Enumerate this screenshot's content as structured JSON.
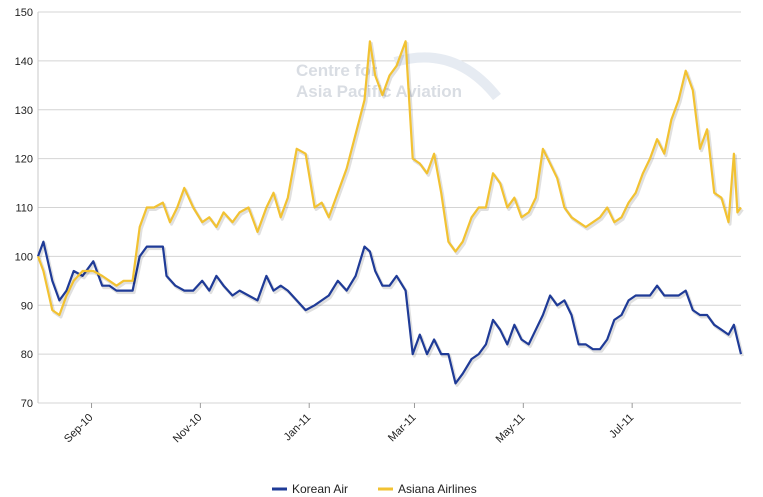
{
  "watermark": {
    "line1": "Centre for",
    "line2": "Asia Pacific Aviation"
  },
  "chart_data": {
    "type": "line",
    "title": "",
    "xlabel": "",
    "ylabel": "",
    "ylim": [
      70,
      150
    ],
    "yticks": [
      70,
      80,
      90,
      100,
      110,
      120,
      130,
      140,
      150
    ],
    "x_range": [
      "2010-08-02",
      "2011-08-31"
    ],
    "x_ticks": [
      {
        "date": "2010-09-01",
        "label": "Sep-10"
      },
      {
        "date": "2010-11-01",
        "label": "Nov-10"
      },
      {
        "date": "2011-01-01",
        "label": "Jan-11"
      },
      {
        "date": "2011-03-01",
        "label": "Mar-11"
      },
      {
        "date": "2011-05-01",
        "label": "May-11"
      },
      {
        "date": "2011-07-01",
        "label": "Jul-11"
      }
    ],
    "grid": true,
    "legend_position": "bottom-center",
    "series": [
      {
        "name": "Korean Air",
        "color": "#1f3b97",
        "points": [
          [
            "2010-08-02",
            100
          ],
          [
            "2010-08-05",
            103
          ],
          [
            "2010-08-10",
            95
          ],
          [
            "2010-08-14",
            91
          ],
          [
            "2010-08-18",
            93
          ],
          [
            "2010-08-22",
            97
          ],
          [
            "2010-08-27",
            96
          ],
          [
            "2010-09-02",
            99
          ],
          [
            "2010-09-07",
            94
          ],
          [
            "2010-09-11",
            94
          ],
          [
            "2010-09-15",
            93
          ],
          [
            "2010-09-19",
            93
          ],
          [
            "2010-09-24",
            93
          ],
          [
            "2010-09-28",
            100
          ],
          [
            "2010-10-02",
            102
          ],
          [
            "2010-10-06",
            102
          ],
          [
            "2010-10-11",
            102
          ],
          [
            "2010-10-13",
            96
          ],
          [
            "2010-10-18",
            94
          ],
          [
            "2010-10-23",
            93
          ],
          [
            "2010-10-28",
            93
          ],
          [
            "2010-11-02",
            95
          ],
          [
            "2010-11-06",
            93
          ],
          [
            "2010-11-10",
            96
          ],
          [
            "2010-11-14",
            94
          ],
          [
            "2010-11-19",
            92
          ],
          [
            "2010-11-23",
            93
          ],
          [
            "2010-11-28",
            92
          ],
          [
            "2010-12-03",
            91
          ],
          [
            "2010-12-08",
            96
          ],
          [
            "2010-12-12",
            93
          ],
          [
            "2010-12-16",
            94
          ],
          [
            "2010-12-20",
            93
          ],
          [
            "2010-12-25",
            91
          ],
          [
            "2010-12-30",
            89
          ],
          [
            "2011-01-04",
            90
          ],
          [
            "2011-01-08",
            91
          ],
          [
            "2011-01-12",
            92
          ],
          [
            "2011-01-17",
            95
          ],
          [
            "2011-01-22",
            93
          ],
          [
            "2011-01-27",
            96
          ],
          [
            "2011-02-01",
            102
          ],
          [
            "2011-02-04",
            101
          ],
          [
            "2011-02-07",
            97
          ],
          [
            "2011-02-11",
            94
          ],
          [
            "2011-02-15",
            94
          ],
          [
            "2011-02-19",
            96
          ],
          [
            "2011-02-24",
            93
          ],
          [
            "2011-02-28",
            80
          ],
          [
            "2011-03-04",
            84
          ],
          [
            "2011-03-08",
            80
          ],
          [
            "2011-03-12",
            83
          ],
          [
            "2011-03-16",
            80
          ],
          [
            "2011-03-20",
            80
          ],
          [
            "2011-03-24",
            74
          ],
          [
            "2011-03-28",
            76
          ],
          [
            "2011-04-02",
            79
          ],
          [
            "2011-04-06",
            80
          ],
          [
            "2011-04-10",
            82
          ],
          [
            "2011-04-14",
            87
          ],
          [
            "2011-04-18",
            85
          ],
          [
            "2011-04-22",
            82
          ],
          [
            "2011-04-26",
            86
          ],
          [
            "2011-04-30",
            83
          ],
          [
            "2011-05-04",
            82
          ],
          [
            "2011-05-08",
            85
          ],
          [
            "2011-05-12",
            88
          ],
          [
            "2011-05-16",
            92
          ],
          [
            "2011-05-20",
            90
          ],
          [
            "2011-05-24",
            91
          ],
          [
            "2011-05-28",
            88
          ],
          [
            "2011-06-01",
            82
          ],
          [
            "2011-06-05",
            82
          ],
          [
            "2011-06-09",
            81
          ],
          [
            "2011-06-13",
            81
          ],
          [
            "2011-06-17",
            83
          ],
          [
            "2011-06-21",
            87
          ],
          [
            "2011-06-25",
            88
          ],
          [
            "2011-06-29",
            91
          ],
          [
            "2011-07-03",
            92
          ],
          [
            "2011-07-07",
            92
          ],
          [
            "2011-07-11",
            92
          ],
          [
            "2011-07-15",
            94
          ],
          [
            "2011-07-19",
            92
          ],
          [
            "2011-07-23",
            92
          ],
          [
            "2011-07-27",
            92
          ],
          [
            "2011-07-31",
            93
          ],
          [
            "2011-08-04",
            89
          ],
          [
            "2011-08-08",
            88
          ],
          [
            "2011-08-12",
            88
          ],
          [
            "2011-08-16",
            86
          ],
          [
            "2011-08-20",
            85
          ],
          [
            "2011-08-24",
            84
          ],
          [
            "2011-08-27",
            86
          ],
          [
            "2011-08-29",
            83
          ],
          [
            "2011-08-31",
            80
          ]
        ]
      },
      {
        "name": "Asiana Airlines",
        "color": "#f2c232",
        "points": [
          [
            "2010-08-02",
            100
          ],
          [
            "2010-08-05",
            97
          ],
          [
            "2010-08-10",
            89
          ],
          [
            "2010-08-14",
            88
          ],
          [
            "2010-08-18",
            92
          ],
          [
            "2010-08-22",
            95
          ],
          [
            "2010-08-27",
            97
          ],
          [
            "2010-09-02",
            97
          ],
          [
            "2010-09-07",
            96
          ],
          [
            "2010-09-11",
            95
          ],
          [
            "2010-09-15",
            94
          ],
          [
            "2010-09-19",
            95
          ],
          [
            "2010-09-24",
            95
          ],
          [
            "2010-09-28",
            106
          ],
          [
            "2010-10-02",
            110
          ],
          [
            "2010-10-06",
            110
          ],
          [
            "2010-10-11",
            111
          ],
          [
            "2010-10-15",
            107
          ],
          [
            "2010-10-19",
            110
          ],
          [
            "2010-10-23",
            114
          ],
          [
            "2010-10-28",
            110
          ],
          [
            "2010-11-02",
            107
          ],
          [
            "2010-11-06",
            108
          ],
          [
            "2010-11-10",
            106
          ],
          [
            "2010-11-14",
            109
          ],
          [
            "2010-11-19",
            107
          ],
          [
            "2010-11-23",
            109
          ],
          [
            "2010-11-28",
            110
          ],
          [
            "2010-12-03",
            105
          ],
          [
            "2010-12-08",
            110
          ],
          [
            "2010-12-12",
            113
          ],
          [
            "2010-12-16",
            108
          ],
          [
            "2010-12-20",
            112
          ],
          [
            "2010-12-25",
            122
          ],
          [
            "2010-12-30",
            121
          ],
          [
            "2011-01-04",
            110
          ],
          [
            "2011-01-08",
            111
          ],
          [
            "2011-01-12",
            108
          ],
          [
            "2011-01-17",
            113
          ],
          [
            "2011-01-22",
            118
          ],
          [
            "2011-01-27",
            125
          ],
          [
            "2011-02-01",
            132
          ],
          [
            "2011-02-04",
            144
          ],
          [
            "2011-02-07",
            137
          ],
          [
            "2011-02-11",
            133
          ],
          [
            "2011-02-15",
            137
          ],
          [
            "2011-02-19",
            139
          ],
          [
            "2011-02-24",
            144
          ],
          [
            "2011-02-28",
            120
          ],
          [
            "2011-03-04",
            119
          ],
          [
            "2011-03-08",
            117
          ],
          [
            "2011-03-12",
            121
          ],
          [
            "2011-03-16",
            113
          ],
          [
            "2011-03-20",
            103
          ],
          [
            "2011-03-24",
            101
          ],
          [
            "2011-03-28",
            103
          ],
          [
            "2011-04-02",
            108
          ],
          [
            "2011-04-06",
            110
          ],
          [
            "2011-04-10",
            110
          ],
          [
            "2011-04-14",
            117
          ],
          [
            "2011-04-18",
            115
          ],
          [
            "2011-04-22",
            110
          ],
          [
            "2011-04-26",
            112
          ],
          [
            "2011-04-30",
            108
          ],
          [
            "2011-05-04",
            109
          ],
          [
            "2011-05-08",
            112
          ],
          [
            "2011-05-12",
            122
          ],
          [
            "2011-05-16",
            119
          ],
          [
            "2011-05-20",
            116
          ],
          [
            "2011-05-24",
            110
          ],
          [
            "2011-05-28",
            108
          ],
          [
            "2011-06-01",
            107
          ],
          [
            "2011-06-05",
            106
          ],
          [
            "2011-06-09",
            107
          ],
          [
            "2011-06-13",
            108
          ],
          [
            "2011-06-17",
            110
          ],
          [
            "2011-06-21",
            107
          ],
          [
            "2011-06-25",
            108
          ],
          [
            "2011-06-29",
            111
          ],
          [
            "2011-07-03",
            113
          ],
          [
            "2011-07-07",
            117
          ],
          [
            "2011-07-11",
            120
          ],
          [
            "2011-07-15",
            124
          ],
          [
            "2011-07-19",
            121
          ],
          [
            "2011-07-23",
            128
          ],
          [
            "2011-07-27",
            132
          ],
          [
            "2011-07-31",
            138
          ],
          [
            "2011-08-04",
            134
          ],
          [
            "2011-08-08",
            122
          ],
          [
            "2011-08-12",
            126
          ],
          [
            "2011-08-16",
            113
          ],
          [
            "2011-08-20",
            112
          ],
          [
            "2011-08-24",
            107
          ],
          [
            "2011-08-27",
            121
          ],
          [
            "2011-08-29",
            109
          ],
          [
            "2011-08-31",
            110
          ]
        ]
      }
    ]
  }
}
